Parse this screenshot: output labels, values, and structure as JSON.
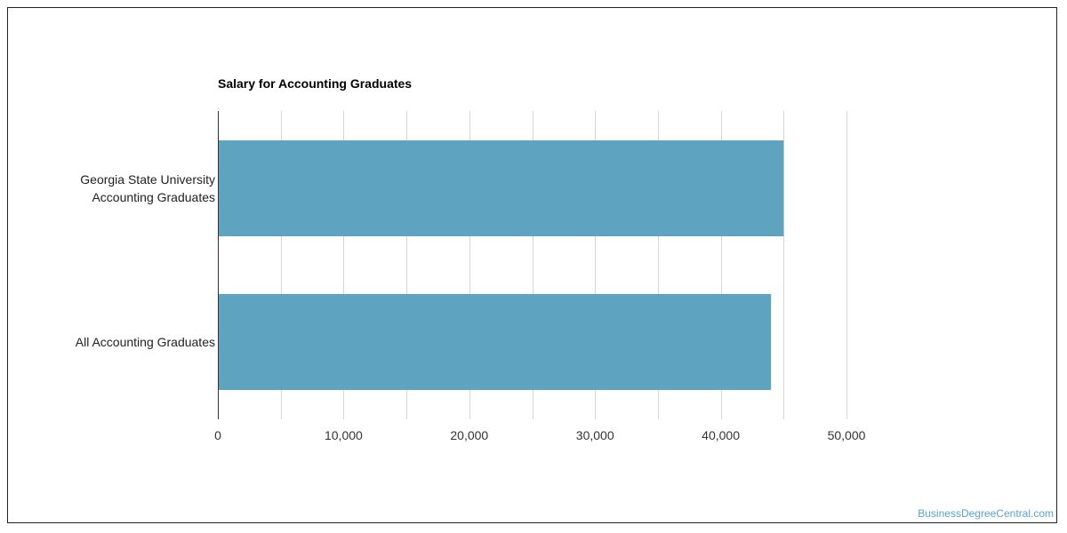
{
  "chart_data": {
    "type": "bar",
    "orientation": "horizontal",
    "title": "Salary for Accounting Graduates",
    "categories": [
      [
        "Georgia State University",
        "Accounting Graduates"
      ],
      [
        "All Accounting Graduates"
      ]
    ],
    "values": [
      45000,
      44000
    ],
    "xlim": [
      0,
      50000
    ],
    "x_ticks": [
      "0",
      "10,000",
      "20,000",
      "30,000",
      "40,000",
      "50,000"
    ],
    "x_tick_values": [
      0,
      10000,
      20000,
      30000,
      40000,
      50000
    ],
    "grid": true,
    "bar_color": "#5ea3bf",
    "grid_color": "#d6d6d6",
    "axis_color": "#333333"
  },
  "watermark": "BusinessDegreeCentral.com"
}
